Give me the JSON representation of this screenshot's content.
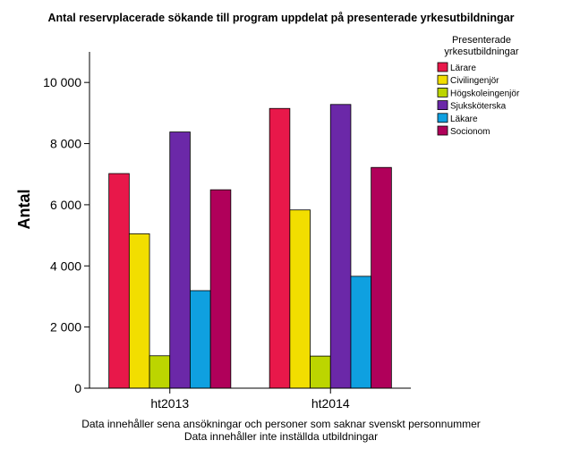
{
  "chart_data": {
    "type": "bar",
    "title": "Antal reservplacerade sökande till program uppdelat på presenterade yrkesutbildningar",
    "xlabel": "",
    "ylabel": "Antal",
    "ylim": [
      0,
      11000
    ],
    "yticks": [
      0,
      2000,
      4000,
      6000,
      8000,
      10000
    ],
    "ytick_labels": [
      "0",
      "2 000",
      "4 000",
      "6 000",
      "8 000",
      "10 000"
    ],
    "categories": [
      "ht2013",
      "ht2014"
    ],
    "legend_title_lines": [
      "Presenterade",
      "yrkesutbildningar"
    ],
    "legend_position": "top-right",
    "grid": false,
    "series": [
      {
        "name": "Lärare",
        "color": "#e8184a",
        "values": [
          7020,
          9150
        ]
      },
      {
        "name": "Civilingenjör",
        "color": "#f2de00",
        "values": [
          5050,
          5830
        ]
      },
      {
        "name": "Högskoleingenjör",
        "color": "#bcd500",
        "values": [
          1060,
          1050
        ]
      },
      {
        "name": "Sjuksköterska",
        "color": "#6b28a8",
        "values": [
          8380,
          9280
        ]
      },
      {
        "name": "Läkare",
        "color": "#0fa0e0",
        "values": [
          3190,
          3660
        ]
      },
      {
        "name": "Socionom",
        "color": "#b0005a",
        "values": [
          6490,
          7220
        ]
      }
    ],
    "notes": [
      "Data innehåller sena ansökningar och personer som saknar svenskt personnummer",
      "Data innehåller inte inställda utbildningar"
    ]
  }
}
